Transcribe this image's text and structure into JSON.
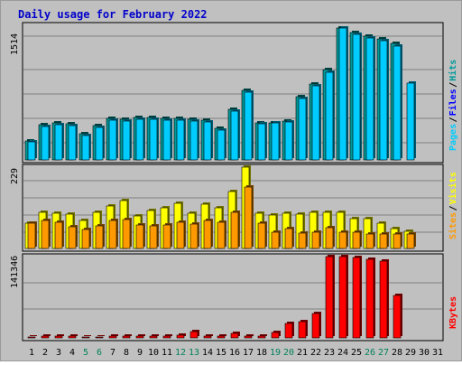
{
  "chart_data": {
    "type": "bar",
    "title": "Daily usage for February 2022",
    "x": [
      "1",
      "2",
      "3",
      "4",
      "5",
      "6",
      "7",
      "8",
      "9",
      "10",
      "11",
      "12",
      "13",
      "14",
      "15",
      "16",
      "17",
      "18",
      "19",
      "20",
      "21",
      "22",
      "23",
      "24",
      "25",
      "26",
      "27",
      "28",
      "29",
      "30",
      "31"
    ],
    "weekend_days": [
      "5",
      "6",
      "12",
      "13",
      "19",
      "20",
      "26",
      "27"
    ],
    "panels": [
      {
        "id": "hits",
        "max_label": "1514",
        "ylim": [
          0,
          1514
        ],
        "series": [
          {
            "name": "Hits",
            "color": "#009999",
            "values": [
              220,
              400,
              420,
              410,
              300,
              390,
              480,
              470,
              490,
              490,
              480,
              480,
              470,
              460,
              360,
              580,
              800,
              420,
              430,
              450,
              730,
              870,
              1040,
              1514,
              1460,
              1420,
              1390,
              1340,
              null,
              null,
              null
            ]
          },
          {
            "name": "Files",
            "color": "#0000ff",
            "values": [
              null,
              null,
              null,
              null,
              null,
              null,
              null,
              null,
              null,
              null,
              null,
              null,
              null,
              null,
              null,
              null,
              null,
              null,
              null,
              null,
              null,
              null,
              null,
              null,
              null,
              null,
              null,
              null,
              null,
              null,
              null
            ]
          },
          {
            "name": "Pages",
            "color": "#00ccff",
            "values": [
              210,
              380,
              400,
              390,
              280,
              370,
              460,
              450,
              470,
              470,
              460,
              460,
              450,
              440,
              340,
              560,
              780,
              410,
              420,
              440,
              710,
              850,
              1010,
              1514,
              1440,
              1400,
              1370,
              1310,
              880,
              null,
              null
            ]
          }
        ],
        "side_labels": [
          "Pages",
          "/",
          "Files",
          "/",
          "Hits"
        ],
        "side_colors": [
          "#00ccff",
          "#000000",
          "#0000ff",
          "#000000",
          "#009999"
        ]
      },
      {
        "id": "visits",
        "max_label": "229",
        "ylim": [
          0,
          229
        ],
        "series": [
          {
            "name": "Visits",
            "color": "#ffff00",
            "values": [
              72,
              102,
              98,
              97,
              78,
              103,
              119,
              135,
              92,
              108,
              114,
              126,
              98,
              125,
              115,
              160,
              229,
              98,
              94,
              98,
              97,
              101,
              102,
              101,
              84,
              85,
              72,
              57,
              48,
              null,
              null
            ]
          },
          {
            "name": "Sites",
            "color": "#ff9900",
            "values": [
              70,
              80,
              73,
              62,
              54,
              64,
              79,
              81,
              65,
              63,
              67,
              74,
              68,
              80,
              74,
              103,
              174,
              70,
              46,
              56,
              43,
              46,
              58,
              46,
              45,
              40,
              40,
              40,
              40,
              null,
              null
            ]
          }
        ],
        "side_labels": [
          "Sites",
          "/",
          "Visits"
        ],
        "side_colors": [
          "#ff9900",
          "#000000",
          "#ffff00"
        ]
      },
      {
        "id": "kbytes",
        "max_label": "141346",
        "ylim": [
          0,
          141346
        ],
        "series": [
          {
            "name": "KBytes",
            "color": "#ff0000",
            "values": [
              2000,
              3000,
              3000,
              3000,
              2000,
              2000,
              3000,
              3000,
              3000,
              3000,
              3000,
              4000,
              11000,
              3000,
              3000,
              8000,
              3000,
              3000,
              9000,
              25000,
              29000,
              43000,
              141346,
              141346,
              139000,
              136000,
              134000,
              74000,
              null,
              null,
              null
            ]
          }
        ],
        "side_labels": [
          "KBytes"
        ],
        "side_colors": [
          "#ff0000"
        ]
      }
    ]
  }
}
